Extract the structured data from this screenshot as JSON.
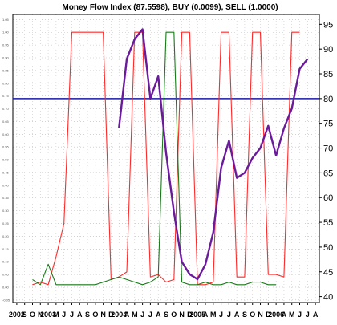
{
  "chart_data": {
    "type": "line",
    "title": "Money Flow Index (87.5598), BUY (0.0099), SELL (1.0000)",
    "x": [
      "2002-07",
      "2002-08",
      "2002-09",
      "2002-10",
      "2002-11",
      "2002-12",
      "2003-01",
      "2003-02",
      "2003-03",
      "2003-04",
      "2003-05",
      "2003-06",
      "2003-07",
      "2003-08",
      "2003-09",
      "2003-10",
      "2003-11",
      "2003-12",
      "2004-01",
      "2004-02",
      "2004-03",
      "2004-04",
      "2004-05",
      "2004-06",
      "2004-07",
      "2004-08",
      "2004-09",
      "2004-10",
      "2004-11",
      "2004-12",
      "2005-01",
      "2005-02",
      "2005-03",
      "2005-04",
      "2005-05",
      "2005-06",
      "2005-07",
      "2005-08",
      "2005-09"
    ],
    "x_tick_labels": [
      "2002",
      "S",
      "O",
      "N",
      "2003",
      "M",
      "J",
      "J",
      "A",
      "S",
      "O",
      "N",
      "D",
      "2004",
      "A",
      "M",
      "J",
      "J",
      "A",
      "S",
      "O",
      "N",
      "D",
      "2005",
      "A",
      "M",
      "J",
      "J",
      "A",
      "S",
      "O",
      "N",
      "D",
      "2006",
      "A",
      "M",
      "J",
      "J",
      "A"
    ],
    "left_axis": {
      "ticks": [
        "1.05",
        "1.00",
        "0.95",
        "0.90",
        "0.85",
        "0.80",
        "0.75",
        "0.70",
        "0.65",
        "0.60",
        "0.55",
        "0.50",
        "0.45",
        "0.40",
        "0.35",
        "0.30",
        "0.25",
        "0.20",
        "0.15",
        "0.10",
        "0.05",
        "0.00",
        "-0.05"
      ],
      "ylim": [
        -0.06,
        1.07
      ]
    },
    "right_axis": {
      "ticks": [
        "95",
        "90",
        "85",
        "80",
        "75",
        "70",
        "65",
        "60",
        "55",
        "50",
        "45",
        "40"
      ],
      "ylim": [
        38.8,
        97.0
      ]
    },
    "reference_line": {
      "value": 80,
      "axis": "right",
      "color": "#1a1aa6"
    },
    "series": [
      {
        "axis": "left",
        "color": "#ff2a2a",
        "points": [
          [
            "2002-09",
            0.01
          ],
          [
            "2002-10",
            0.02
          ],
          [
            "2002-11",
            0.01
          ],
          [
            "2002-12",
            0.12
          ],
          [
            "2003-01",
            0.25
          ],
          [
            "2003-02",
            1.0
          ],
          [
            "2003-03",
            1.0
          ],
          [
            "2003-04",
            1.0
          ],
          [
            "2003-05",
            1.0
          ],
          [
            "2003-06",
            1.0
          ],
          [
            "2003-07",
            0.03
          ],
          [
            "2003-08",
            0.04
          ],
          [
            "2003-09",
            0.06
          ],
          [
            "2003-10",
            1.0
          ],
          [
            "2003-11",
            1.0
          ],
          [
            "2003-12",
            0.04
          ],
          [
            "2004-01",
            0.05
          ],
          [
            "2004-02",
            0.02
          ],
          [
            "2004-03",
            0.03
          ],
          [
            "2004-04",
            1.0
          ],
          [
            "2004-05",
            1.0
          ],
          [
            "2004-06",
            0.01
          ],
          [
            "2004-07",
            0.01
          ],
          [
            "2004-08",
            0.02
          ],
          [
            "2004-09",
            1.0
          ],
          [
            "2004-10",
            1.0
          ],
          [
            "2004-11",
            0.04
          ],
          [
            "2004-12",
            0.04
          ],
          [
            "2005-01",
            1.0
          ],
          [
            "2005-02",
            1.0
          ],
          [
            "2005-03",
            0.05
          ],
          [
            "2005-04",
            0.05
          ],
          [
            "2005-05",
            0.04
          ],
          [
            "2005-06",
            1.0
          ],
          [
            "2005-07",
            1.0
          ]
        ]
      },
      {
        "axis": "left",
        "color": "#1a7a1a",
        "points": [
          [
            "2002-09",
            0.03
          ],
          [
            "2002-10",
            0.01
          ],
          [
            "2002-11",
            0.09
          ],
          [
            "2002-12",
            0.01
          ],
          [
            "2003-01",
            0.01
          ],
          [
            "2003-02",
            0.01
          ],
          [
            "2003-03",
            0.01
          ],
          [
            "2003-04",
            0.01
          ],
          [
            "2003-05",
            0.01
          ],
          [
            "2003-06",
            0.02
          ],
          [
            "2003-07",
            0.03
          ],
          [
            "2003-08",
            0.04
          ],
          [
            "2003-09",
            0.03
          ],
          [
            "2003-10",
            0.02
          ],
          [
            "2003-11",
            0.01
          ],
          [
            "2003-12",
            0.02
          ],
          [
            "2004-01",
            0.04
          ],
          [
            "2004-02",
            1.0
          ],
          [
            "2004-03",
            1.0
          ],
          [
            "2004-04",
            0.02
          ],
          [
            "2004-05",
            0.01
          ],
          [
            "2004-06",
            0.01
          ],
          [
            "2004-07",
            0.02
          ],
          [
            "2004-08",
            0.01
          ],
          [
            "2004-09",
            0.01
          ],
          [
            "2004-10",
            0.02
          ],
          [
            "2004-11",
            0.01
          ],
          [
            "2004-12",
            0.01
          ],
          [
            "2005-01",
            0.02
          ],
          [
            "2005-02",
            0.02
          ],
          [
            "2005-03",
            0.01
          ],
          [
            "2005-04",
            0.01
          ]
        ]
      },
      {
        "axis": "right",
        "color": "#6a1a9a",
        "points": [
          [
            "2003-08",
            74.0
          ],
          [
            "2003-09",
            88.0
          ],
          [
            "2003-10",
            92.0
          ],
          [
            "2003-11",
            94.0
          ],
          [
            "2003-12",
            80.0
          ],
          [
            "2004-01",
            84.5
          ],
          [
            "2004-02",
            69.0
          ],
          [
            "2004-03",
            57.0
          ],
          [
            "2004-04",
            47.0
          ],
          [
            "2004-05",
            44.5
          ],
          [
            "2004-06",
            43.5
          ],
          [
            "2004-07",
            46.5
          ],
          [
            "2004-08",
            53.0
          ],
          [
            "2004-09",
            66.0
          ],
          [
            "2004-10",
            71.5
          ],
          [
            "2004-11",
            64.0
          ],
          [
            "2004-12",
            65.0
          ],
          [
            "2005-01",
            68.0
          ],
          [
            "2005-02",
            70.0
          ],
          [
            "2005-03",
            74.5
          ],
          [
            "2005-04",
            68.5
          ],
          [
            "2005-05",
            74.0
          ],
          [
            "2005-06",
            78.0
          ],
          [
            "2005-07",
            86.0
          ],
          [
            "2005-08",
            88.0
          ]
        ]
      }
    ]
  }
}
